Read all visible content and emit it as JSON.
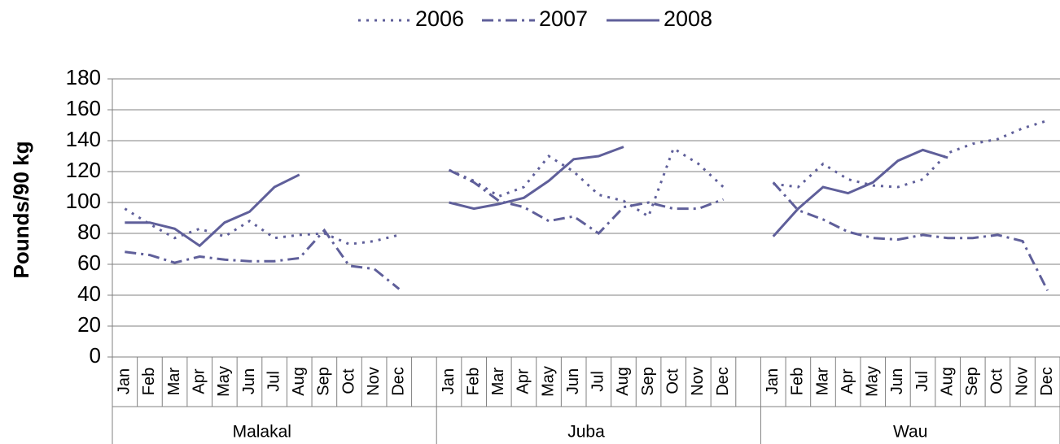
{
  "chart_data": {
    "type": "line",
    "y_label": "Pounds/90 kg",
    "categories": [
      "Jan",
      "Feb",
      "Mar",
      "Apr",
      "May",
      "Jun",
      "Jul",
      "Aug",
      "Sep",
      "Oct",
      "Nov",
      "Dec",
      null,
      "Jan",
      "Feb",
      "Mar",
      "Apr",
      "May",
      "Jun",
      "Jul",
      "Aug",
      "Sep",
      "Oct",
      "Nov",
      "Dec",
      null,
      "Jan",
      "Feb",
      "Mar",
      "Apr",
      "May",
      "Jun",
      "Jul",
      "Aug",
      "Sep",
      "Oct",
      "Nov",
      "Dec"
    ],
    "groups": [
      "Malakal",
      "Juba",
      "Wau"
    ],
    "series": [
      {
        "name": "2006",
        "color": "#5f5f9a",
        "dash": "3,7",
        "values": [
          96,
          86,
          77,
          83,
          78,
          88,
          77,
          79,
          80,
          73,
          75,
          79,
          null,
          121,
          114,
          104,
          110,
          130,
          120,
          105,
          101,
          91,
          135,
          125,
          110,
          null,
          112,
          110,
          125,
          115,
          111,
          110,
          115,
          132,
          138,
          141,
          148,
          153
        ]
      },
      {
        "name": "2007",
        "color": "#5f5f9a",
        "dash": "14,6,3,6",
        "values": [
          68,
          66,
          61,
          65,
          63,
          62,
          62,
          64,
          82,
          59,
          57,
          44,
          null,
          121,
          113,
          101,
          97,
          88,
          91,
          80,
          97,
          100,
          96,
          96,
          102,
          null,
          113,
          95,
          89,
          81,
          77,
          76,
          79,
          77,
          77,
          79,
          75,
          43
        ]
      },
      {
        "name": "2008",
        "color": "#5f5f9a",
        "dash": "none",
        "values": [
          87,
          87,
          83,
          72,
          87,
          94,
          110,
          118,
          null,
          null,
          null,
          null,
          null,
          100,
          96,
          99,
          103,
          114,
          128,
          130,
          136,
          null,
          null,
          null,
          null,
          null,
          78,
          96,
          110,
          106,
          113,
          127,
          134,
          129,
          null,
          null,
          null,
          null
        ]
      }
    ],
    "ylim": [
      0,
      180
    ],
    "yticks": [
      0,
      20,
      40,
      60,
      80,
      100,
      120,
      140,
      160,
      180
    ],
    "grid": true
  }
}
